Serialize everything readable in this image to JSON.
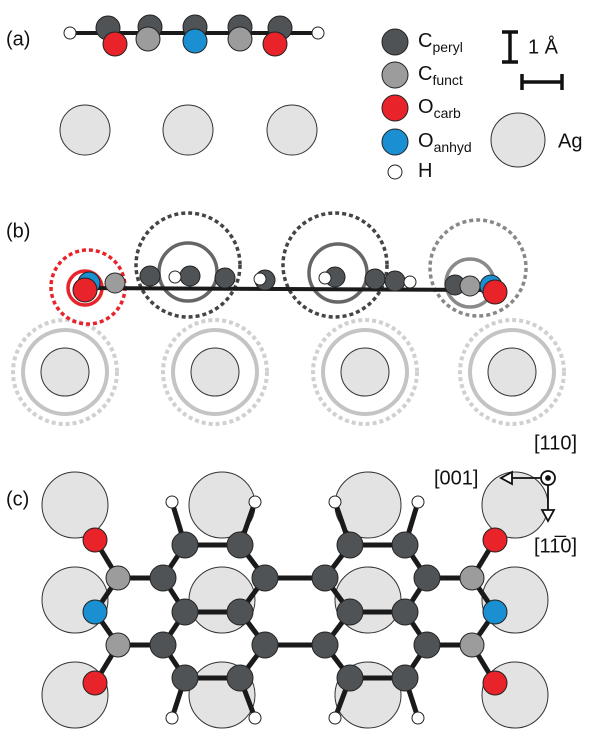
{
  "panels": [
    {
      "label": "(a)"
    },
    {
      "label": "(b)"
    },
    {
      "label": "(c)"
    }
  ],
  "legend": {
    "items": [
      {
        "symbol": "C",
        "sub": "peryl"
      },
      {
        "symbol": "C",
        "sub": "funct"
      },
      {
        "symbol": "O",
        "sub": "carb"
      },
      {
        "symbol": "O",
        "sub": "anhyd"
      },
      {
        "symbol": "H"
      }
    ],
    "substrate": "Ag"
  },
  "scale_bar": "1 Å",
  "directions": [
    "[110]",
    "[001]",
    "[11̅0]"
  ]
}
